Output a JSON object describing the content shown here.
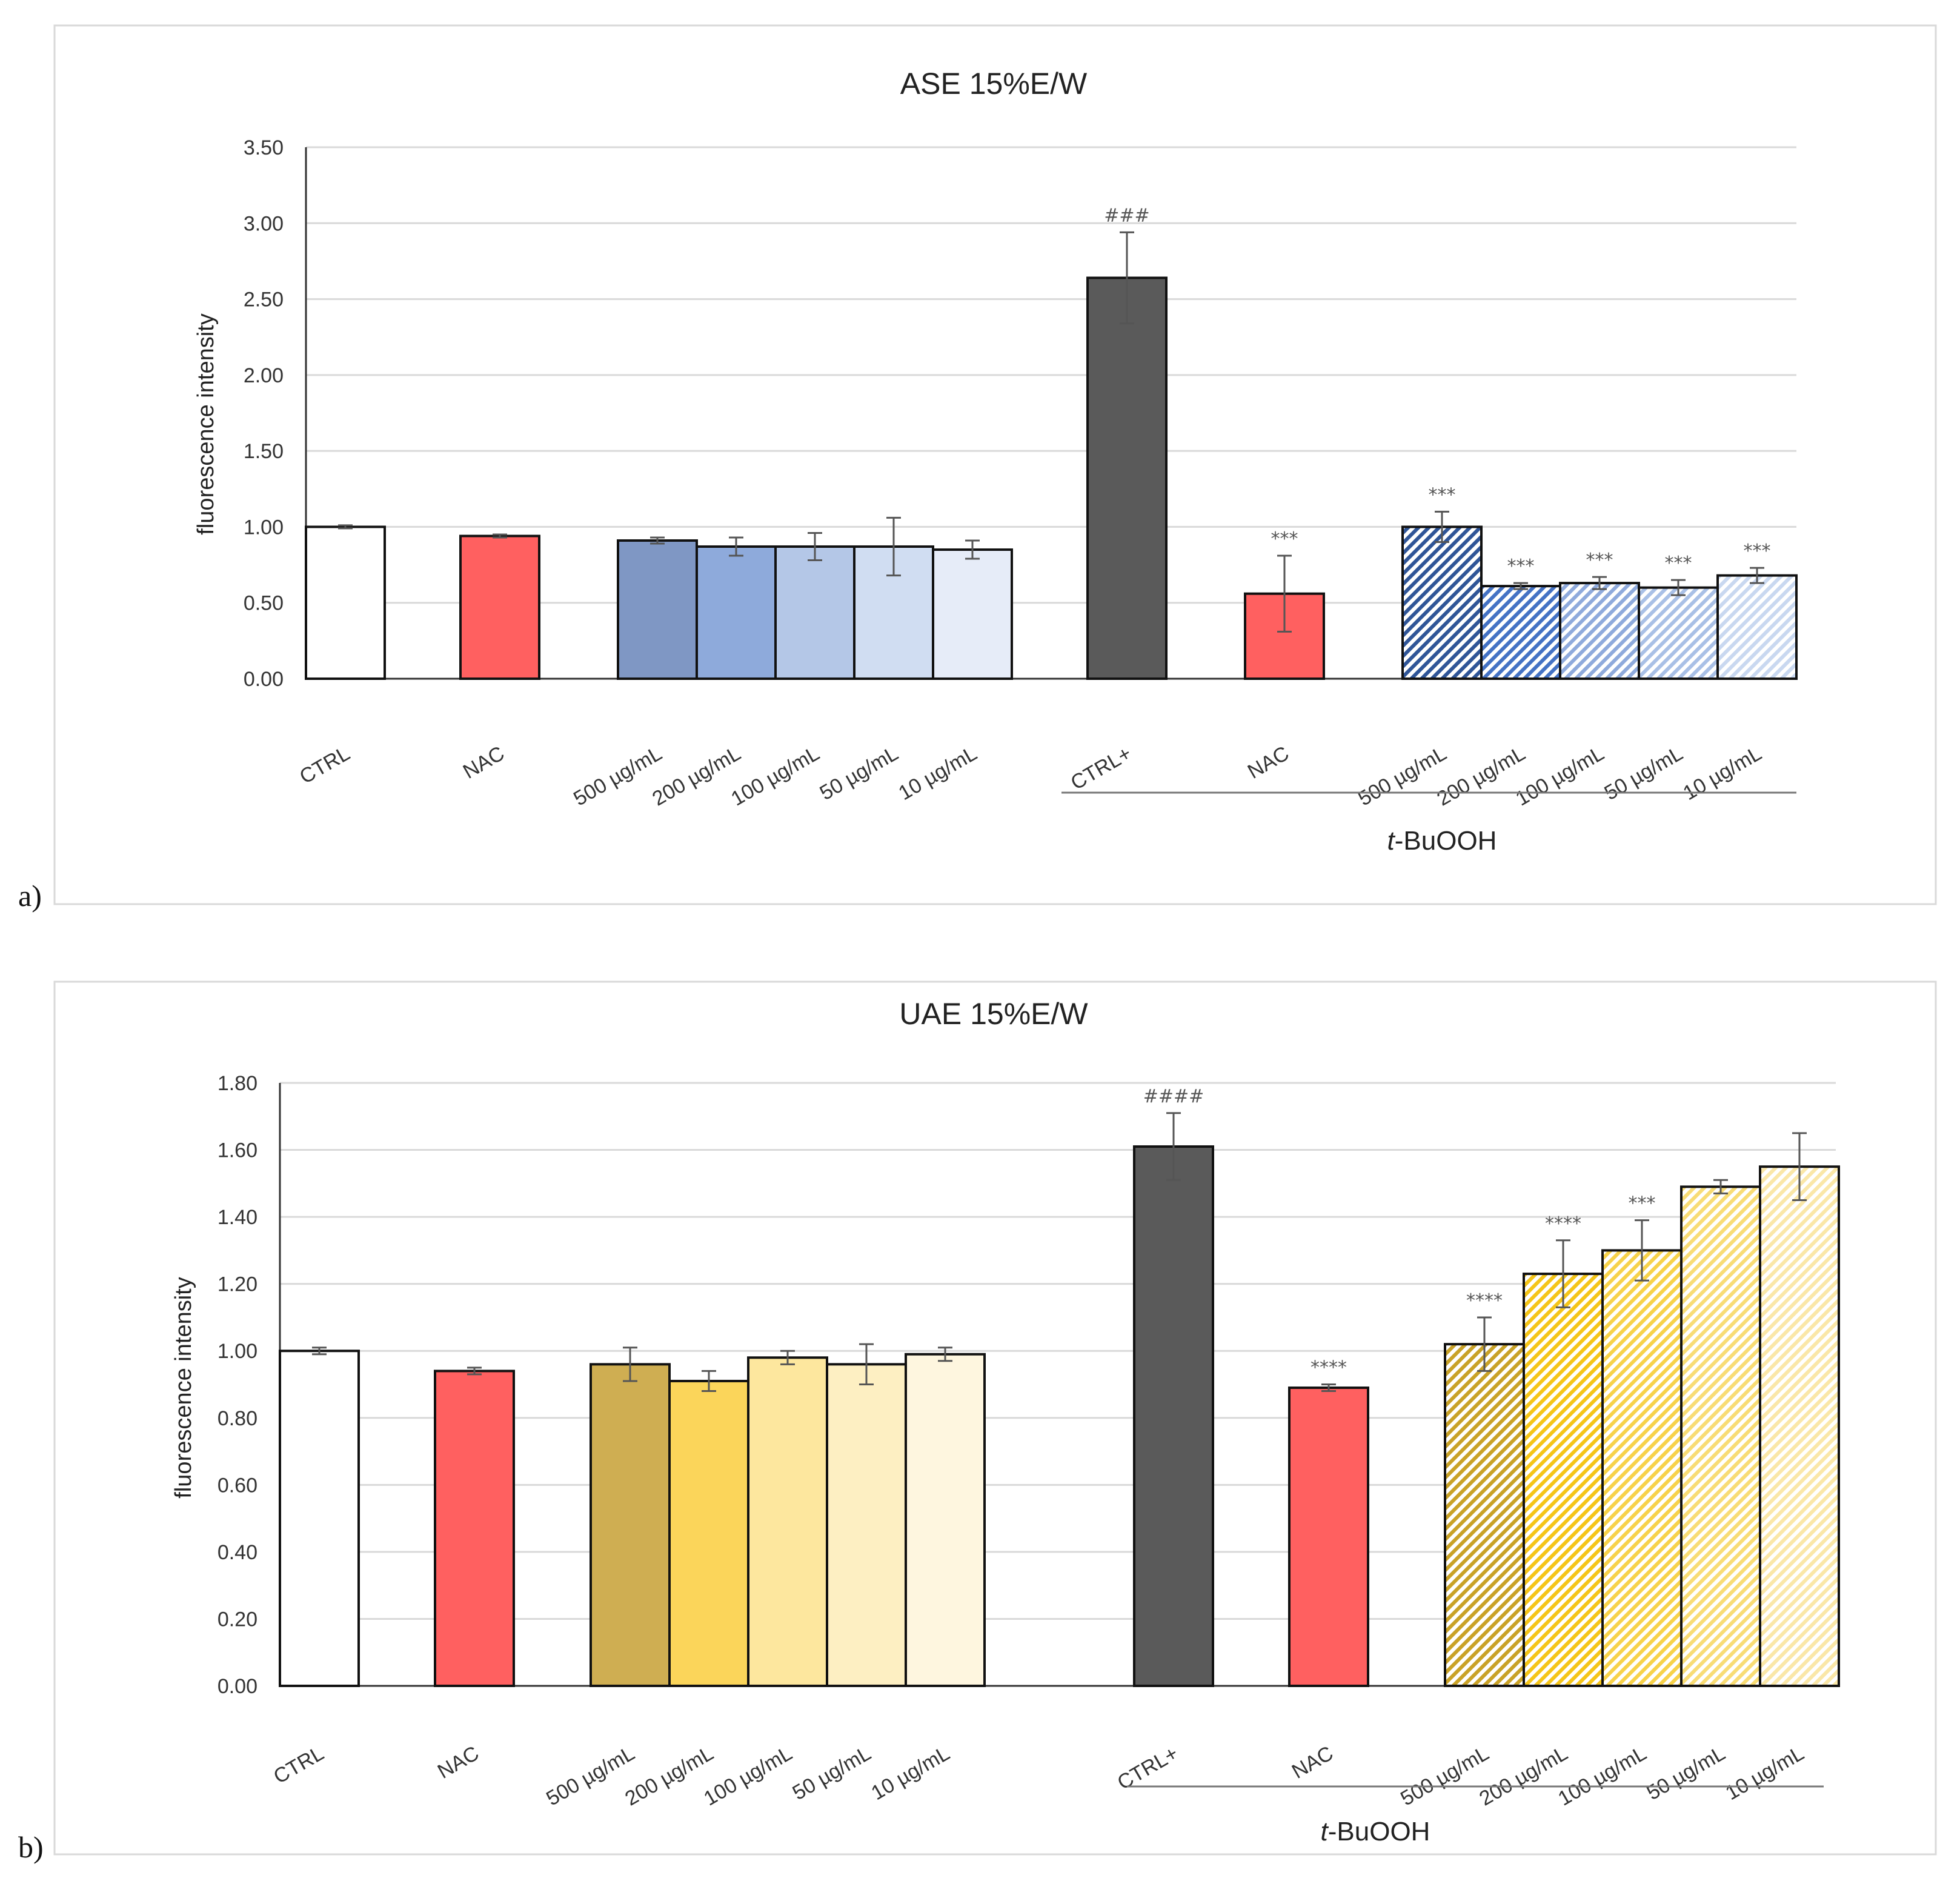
{
  "chart_data": [
    {
      "type": "bar",
      "panel_label": "a)",
      "title": "ASE 15%E/W",
      "ylabel": "fluorescence intensity",
      "xlabel": "",
      "ylim": [
        0,
        3.5
      ],
      "yticks": [
        "0.00",
        "0.50",
        "1.00",
        "1.50",
        "2.00",
        "2.50",
        "3.00",
        "3.50"
      ],
      "grid": true,
      "group_label_prefix": "t",
      "group_label_suffix": "-BuOOH",
      "categories": [
        "CTRL",
        "NAC",
        "500 µg/mL",
        "200 µg/mL",
        "100  µg/mL",
        "50  µg/mL",
        "10  µg/mL",
        "CTRL+",
        "NAC",
        "500 µg/mL",
        "200 µg/mL",
        "100  µg/mL",
        "50  µg/mL",
        "10  µg/mL"
      ],
      "values": [
        1.0,
        0.94,
        0.91,
        0.87,
        0.87,
        0.87,
        0.85,
        2.64,
        0.56,
        1.0,
        0.61,
        0.63,
        0.6,
        0.68
      ],
      "errors": [
        0.01,
        0.01,
        0.02,
        0.06,
        0.09,
        0.19,
        0.06,
        0.3,
        0.25,
        0.1,
        0.02,
        0.04,
        0.05,
        0.05
      ],
      "annotations": [
        "",
        "",
        "",
        "",
        "",
        "",
        "",
        "###",
        "***",
        "***",
        "***",
        "***",
        "***",
        "***"
      ],
      "colors": [
        "#ffffff",
        "#ff6060",
        "#7f97c4",
        "#8eaadb",
        "#b4c7e7",
        "#d0ddf2",
        "#e6ecf8",
        "#5a5a5a",
        "#ff6060",
        "#2f5597",
        "#4472c4",
        "#8faadc",
        "#a9c0e6",
        "#c9d8f0"
      ],
      "hatched": [
        false,
        false,
        false,
        false,
        false,
        false,
        false,
        false,
        false,
        true,
        true,
        true,
        true,
        true
      ]
    },
    {
      "type": "bar",
      "panel_label": "b)",
      "title": "UAE 15%E/W",
      "ylabel": "fluorescence intensity",
      "xlabel": "",
      "ylim": [
        0,
        1.8
      ],
      "yticks": [
        "0.00",
        "0.20",
        "0.40",
        "0.60",
        "0.80",
        "1.00",
        "1.20",
        "1.40",
        "1.60",
        "1.80"
      ],
      "grid": true,
      "group_label_prefix": "t",
      "group_label_suffix": "-BuOOH",
      "categories": [
        "CTRL",
        "NAC",
        "500 µg/mL",
        "200 µg/mL",
        "100  µg/mL",
        "50  µg/mL",
        "10  µg/mL",
        "CTRL+",
        "NAC",
        "500 µg/mL",
        "200 µg/mL",
        "100  µg/mL",
        "50  µg/mL",
        "10  µg/mL"
      ],
      "values": [
        1.0,
        0.94,
        0.96,
        0.91,
        0.98,
        0.96,
        0.99,
        1.61,
        0.89,
        1.02,
        1.23,
        1.3,
        1.49,
        1.55
      ],
      "errors": [
        0.01,
        0.01,
        0.05,
        0.03,
        0.02,
        0.06,
        0.02,
        0.1,
        0.01,
        0.08,
        0.1,
        0.09,
        0.02,
        0.1
      ],
      "annotations": [
        "",
        "",
        "",
        "",
        "",
        "",
        "",
        "####",
        "****",
        "****",
        "****",
        "***",
        "",
        ""
      ],
      "colors": [
        "#ffffff",
        "#ff6060",
        "#cfae52",
        "#fbd55a",
        "#fde79e",
        "#fdefc2",
        "#fef6df",
        "#5a5a5a",
        "#ff6060",
        "#c9a227",
        "#f5c518",
        "#f7d24a",
        "#f8dc75",
        "#fae7a8"
      ],
      "hatched": [
        false,
        false,
        false,
        false,
        false,
        false,
        false,
        false,
        false,
        true,
        true,
        true,
        true,
        true
      ]
    }
  ]
}
